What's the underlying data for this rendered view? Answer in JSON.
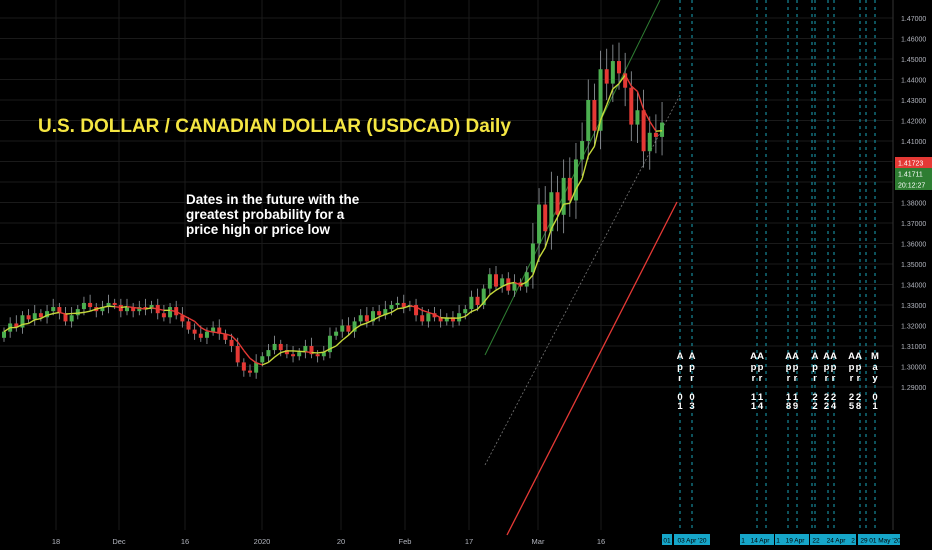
{
  "chart_data": {
    "type": "candlestick",
    "title": "U.S. DOLLAR / CANADIAN DOLLAR (USDCAD) Daily",
    "annotation": [
      "Dates in the future with the",
      "greatest probability for a",
      "price high or price low"
    ],
    "ylim": [
      1.285,
      1.475
    ],
    "y_ticks": [
      "1.47000",
      "1.46000",
      "1.45000",
      "1.44000",
      "1.43000",
      "1.42000",
      "1.41000",
      "1.40000",
      "1.39000",
      "1.38000",
      "1.37000",
      "1.36000",
      "1.35000",
      "1.34000",
      "1.33000",
      "1.32000",
      "1.31000",
      "1.30000",
      "1.29000"
    ],
    "x_ticks": [
      "18",
      "Dec",
      "16",
      "2020",
      "20",
      "Feb",
      "17",
      "Mar",
      "16"
    ],
    "price_labels": [
      {
        "value": "1.41723",
        "color": "#e53935"
      },
      {
        "value": "1.41711",
        "color": "#2e7d32"
      },
      {
        "value": "20:12:27",
        "color": "#2e7d32"
      }
    ],
    "candle_closes": [
      1.317,
      1.321,
      1.319,
      1.325,
      1.323,
      1.326,
      1.324,
      1.327,
      1.329,
      1.326,
      1.322,
      1.325,
      1.328,
      1.331,
      1.329,
      1.327,
      1.329,
      1.331,
      1.33,
      1.327,
      1.329,
      1.327,
      1.329,
      1.328,
      1.33,
      1.326,
      1.324,
      1.329,
      1.325,
      1.322,
      1.318,
      1.316,
      1.314,
      1.317,
      1.319,
      1.316,
      1.313,
      1.31,
      1.302,
      1.298,
      1.297,
      1.302,
      1.305,
      1.308,
      1.311,
      1.308,
      1.306,
      1.305,
      1.307,
      1.31,
      1.306,
      1.305,
      1.307,
      1.315,
      1.317,
      1.32,
      1.317,
      1.322,
      1.325,
      1.322,
      1.327,
      1.325,
      1.328,
      1.33,
      1.331,
      1.329,
      1.33,
      1.325,
      1.322,
      1.326,
      1.324,
      1.322,
      1.324,
      1.322,
      1.326,
      1.328,
      1.334,
      1.33,
      1.338,
      1.345,
      1.339,
      1.343,
      1.337,
      1.341,
      1.339,
      1.346,
      1.36,
      1.379,
      1.366,
      1.385,
      1.374,
      1.392,
      1.381,
      1.401,
      1.41,
      1.43,
      1.415,
      1.445,
      1.438,
      1.449,
      1.443,
      1.436,
      1.418,
      1.425,
      1.405,
      1.414,
      1.412,
      1.419
    ],
    "projection_dates": [
      {
        "month": "Apr",
        "day": "01",
        "stack": 0
      },
      {
        "month": "Apr",
        "day": "03",
        "stack": 0
      },
      {
        "month": "Apr",
        "day": "11",
        "stack": 0
      },
      {
        "month": "Apr",
        "day": "14",
        "stack": 1
      },
      {
        "month": "Apr",
        "day": "18",
        "stack": 0
      },
      {
        "month": "Apr",
        "day": "19",
        "stack": 1
      },
      {
        "month": "Apr",
        "day": "22",
        "stack": 0
      },
      {
        "month": "Apr",
        "day": "22",
        "stack": 0
      },
      {
        "month": "Apr",
        "day": "24",
        "stack": 1
      },
      {
        "month": "Apr",
        "day": "25",
        "stack": 0
      },
      {
        "month": "Apr",
        "day": "28",
        "stack": 0
      },
      {
        "month": "Apr",
        "day": "29",
        "stack": 1
      },
      {
        "month": "May",
        "day": "01",
        "stack": 0
      }
    ],
    "date_boxes": [
      "01",
      "03 Apr '20",
      "1",
      "14 Apr",
      "1",
      "19 Apr",
      "22",
      "24 Apr",
      "2",
      "29",
      "01 May '20"
    ],
    "colors": {
      "up": "#4caf50",
      "down": "#e53935",
      "ma": "#c6d93a",
      "grid": "#1a1a1a",
      "tick_text": "#b2b5be",
      "date_box": "#16a6c9"
    },
    "grid": true
  }
}
